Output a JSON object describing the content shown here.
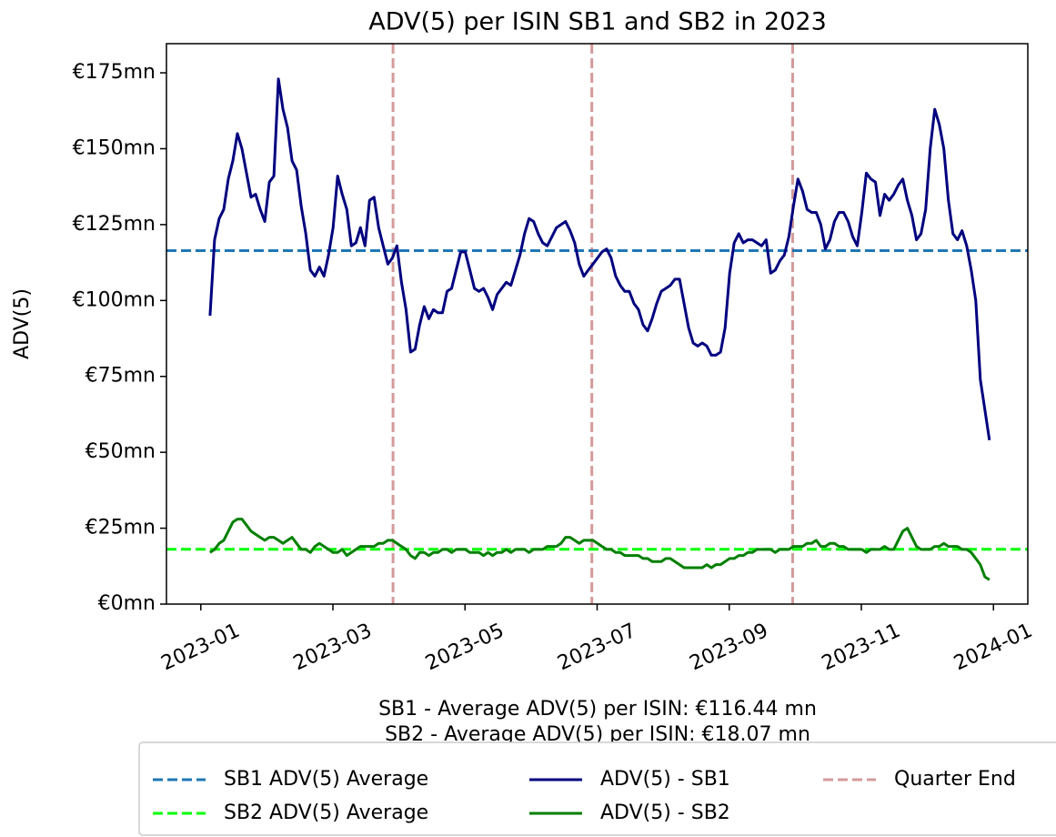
{
  "chart_data": {
    "type": "line",
    "title": "ADV(5) per ISIN SB1 and SB2 in 2023",
    "ylabel": "ADV(5)",
    "x": [
      0.14,
      0.209,
      0.278,
      0.347,
      0.416,
      0.485,
      0.554,
      0.623,
      0.692,
      0.761,
      0.83,
      0.899,
      0.968,
      1.037,
      1.106,
      1.175,
      1.244,
      1.313,
      1.382,
      1.451,
      1.52,
      1.589,
      1.658,
      1.727,
      1.796,
      1.865,
      1.934,
      2.003,
      2.072,
      2.141,
      2.21,
      2.279,
      2.348,
      2.417,
      2.486,
      2.555,
      2.624,
      2.693,
      2.762,
      2.831,
      2.9,
      2.969,
      3.038,
      3.107,
      3.176,
      3.245,
      3.314,
      3.383,
      3.452,
      3.521,
      3.59,
      3.659,
      3.728,
      3.797,
      3.866,
      3.935,
      4.004,
      4.073,
      4.142,
      4.211,
      4.28,
      4.349,
      4.418,
      4.487,
      4.556,
      4.625,
      4.694,
      4.763,
      4.832,
      4.901,
      4.97,
      5.039,
      5.108,
      5.177,
      5.246,
      5.315,
      5.384,
      5.453,
      5.522,
      5.591,
      5.66,
      5.729,
      5.798,
      5.867,
      5.936,
      6.005,
      6.074,
      6.143,
      6.212,
      6.281,
      6.35,
      6.419,
      6.488,
      6.557,
      6.626,
      6.695,
      6.764,
      6.833,
      6.902,
      6.971,
      7.04,
      7.109,
      7.178,
      7.247,
      7.316,
      7.385,
      7.454,
      7.523,
      7.592,
      7.661,
      7.73,
      7.799,
      7.868,
      7.937,
      8.006,
      8.075,
      8.144,
      8.213,
      8.282,
      8.351,
      8.42,
      8.489,
      8.558,
      8.627,
      8.696,
      8.765,
      8.834,
      8.903,
      8.972,
      9.041,
      9.11,
      9.179,
      9.248,
      9.317,
      9.386,
      9.455,
      9.524,
      9.593,
      9.662,
      9.731,
      9.8,
      9.869,
      9.938,
      10.007,
      10.076,
      10.145,
      10.214,
      10.283,
      10.352,
      10.421,
      10.49,
      10.559,
      10.628,
      10.697,
      10.766,
      10.835,
      10.904,
      10.973,
      11.042,
      11.111,
      11.18,
      11.249,
      11.318,
      11.387,
      11.456,
      11.525,
      11.594,
      11.663,
      11.732,
      11.801,
      11.87,
      11.939
    ],
    "xlim": [
      -0.52,
      12.52
    ],
    "xticks": [
      {
        "value": 0,
        "label": "2023-01"
      },
      {
        "value": 2,
        "label": "2023-03"
      },
      {
        "value": 4,
        "label": "2023-05"
      },
      {
        "value": 6,
        "label": "2023-07"
      },
      {
        "value": 8,
        "label": "2023-09"
      },
      {
        "value": 10,
        "label": "2023-11"
      },
      {
        "value": 12,
        "label": "2024-01"
      }
    ],
    "ylim": [
      0,
      184.6
    ],
    "yticks": [
      {
        "value": 0,
        "label": "€0mn"
      },
      {
        "value": 25,
        "label": "€25mn"
      },
      {
        "value": 50,
        "label": "€50mn"
      },
      {
        "value": 75,
        "label": "€75mn"
      },
      {
        "value": 100,
        "label": "€100mn"
      },
      {
        "value": 125,
        "label": "€125mn"
      },
      {
        "value": 150,
        "label": "€150mn"
      },
      {
        "value": 175,
        "label": "€175mn"
      }
    ],
    "series": [
      {
        "name": "ADV(5) - SB1",
        "color": "#00007f",
        "values": [
          95,
          120,
          127,
          130,
          140,
          146,
          155,
          150,
          142,
          134,
          135,
          130,
          126,
          139,
          141,
          173,
          163,
          157,
          146,
          143,
          131,
          122,
          110,
          108,
          111,
          108,
          115,
          124,
          141,
          135,
          130,
          118,
          119,
          124,
          118,
          133,
          134,
          124,
          118,
          112,
          114,
          118,
          106,
          97,
          83,
          84,
          92,
          98,
          94,
          97,
          96,
          96,
          103,
          104,
          110,
          116,
          116,
          110,
          104,
          103,
          104,
          101,
          97,
          102,
          104,
          106,
          105,
          110,
          115,
          122,
          127,
          126,
          122,
          119,
          118,
          121,
          124,
          125,
          126,
          123,
          119,
          112,
          108,
          110,
          112,
          114,
          116,
          117,
          114,
          108,
          105,
          103,
          103,
          99,
          97,
          92,
          90,
          94,
          99,
          103,
          104,
          105,
          107,
          107,
          99,
          91,
          86,
          85,
          86,
          85,
          82,
          82,
          83,
          91,
          109,
          119,
          122,
          119,
          120,
          120,
          119,
          118,
          120,
          109,
          110,
          113,
          115,
          121,
          131,
          140,
          136,
          130,
          129,
          129,
          125,
          117,
          120,
          126,
          129,
          129,
          126,
          121,
          118,
          129,
          142,
          140,
          139,
          128,
          135,
          133,
          135,
          138,
          140,
          133,
          128,
          120,
          122,
          130,
          150,
          163,
          158,
          150,
          133,
          122,
          120,
          123,
          118,
          110,
          100,
          74,
          64,
          54
        ]
      },
      {
        "name": "ADV(5) - SB2",
        "color": "#007f00",
        "values": [
          17,
          18,
          20,
          21,
          24,
          27,
          28,
          28,
          26,
          24,
          23,
          22,
          21,
          22,
          22,
          21,
          20,
          21,
          22,
          20,
          18,
          18,
          17,
          19,
          20,
          19,
          18,
          17,
          17,
          18,
          16,
          17,
          18,
          19,
          19,
          19,
          19,
          20,
          20,
          21,
          21,
          20,
          19,
          18,
          16,
          15,
          17,
          17,
          16,
          17,
          17,
          18,
          18,
          17,
          18,
          18,
          18,
          17,
          17,
          17,
          16,
          17,
          16,
          17,
          17,
          18,
          17,
          18,
          18,
          18,
          17,
          18,
          18,
          18,
          19,
          19,
          19,
          20,
          22,
          22,
          21,
          20,
          21,
          21,
          21,
          20,
          19,
          18,
          18,
          17,
          17,
          16,
          16,
          16,
          16,
          15,
          15,
          14,
          14,
          14,
          15,
          15,
          14,
          13,
          12,
          12,
          12,
          12,
          12,
          13,
          12,
          13,
          13,
          14,
          15,
          15,
          16,
          16,
          17,
          17,
          18,
          18,
          18,
          18,
          17,
          18,
          18,
          18,
          19,
          19,
          19,
          20,
          20,
          21,
          19,
          19,
          20,
          20,
          19,
          19,
          18,
          18,
          18,
          18,
          17,
          18,
          18,
          18,
          19,
          18,
          18,
          21,
          24,
          25,
          22,
          19,
          18,
          18,
          18,
          19,
          19,
          20,
          19,
          19,
          19,
          18,
          18,
          17,
          15,
          13,
          9,
          8
        ]
      }
    ],
    "hlines": [
      {
        "name": "SB1 ADV(5) Average",
        "color": "#1f77b4",
        "value": 116.44
      },
      {
        "name": "SB2 ADV(5) Average",
        "color": "#00ff00",
        "value": 18.07
      }
    ],
    "vlines": {
      "name": "Quarter End",
      "color": "#d49a9a",
      "values": [
        2.91,
        5.92,
        8.96
      ]
    },
    "annotations": [
      "SB1 - Average ADV(5) per ISIN: €116.44 mn",
      "SB2 - Average ADV(5) per ISIN: €18.07 mn"
    ],
    "legend": "lower center"
  }
}
